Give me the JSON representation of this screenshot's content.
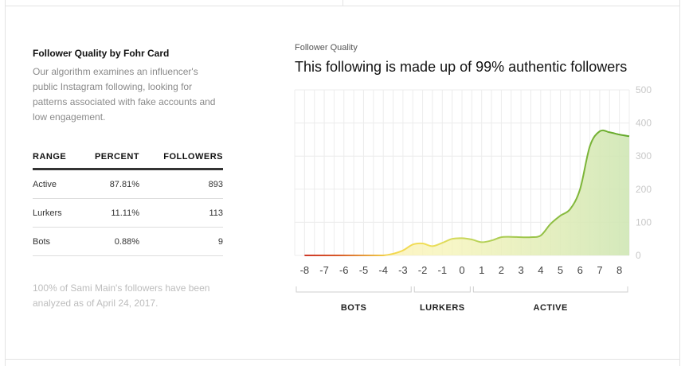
{
  "card": {
    "title": "Follower Quality by Fohr Card",
    "description": "Our algorithm examines an influencer's public Instagram following, looking for patterns associated with fake accounts and low engagement."
  },
  "table": {
    "headers": [
      "RANGE",
      "PERCENT",
      "FOLLOWERS"
    ],
    "rows": [
      {
        "range": "Active",
        "percent": "87.81%",
        "followers": "893"
      },
      {
        "range": "Lurkers",
        "percent": "11.11%",
        "followers": "113"
      },
      {
        "range": "Bots",
        "percent": "0.88%",
        "followers": "9"
      }
    ]
  },
  "footnote": "100% of Sami Main's followers have been analyzed as of April 24, 2017.",
  "chart_data": {
    "type": "area",
    "kicker": "Follower Quality",
    "title": "This following is made up of 99% authentic followers",
    "x": [
      -8,
      -7.5,
      -7,
      -6.5,
      -6,
      -5.5,
      -5,
      -4.5,
      -4,
      -3.5,
      -3,
      -2.5,
      -2,
      -1.5,
      -1,
      -0.5,
      0,
      0.5,
      1,
      1.5,
      2,
      2.5,
      3,
      3.5,
      4,
      4.5,
      5,
      5.5,
      6,
      6.5,
      7,
      7.5,
      8,
      8.5
    ],
    "y": [
      0,
      0,
      0,
      0,
      0,
      0,
      0,
      0,
      0,
      5,
      15,
      33,
      36,
      28,
      38,
      50,
      52,
      48,
      40,
      45,
      55,
      56,
      55,
      55,
      60,
      95,
      120,
      140,
      200,
      330,
      375,
      372,
      365,
      360
    ],
    "xlim": [
      -8.5,
      8.5
    ],
    "ylim": [
      0,
      500
    ],
    "x_ticks": [
      "-8",
      "-7",
      "-6",
      "-5",
      "-4",
      "-3",
      "-2",
      "-1",
      "0",
      "1",
      "2",
      "3",
      "4",
      "5",
      "6",
      "7",
      "8"
    ],
    "y_ticks": [
      "0",
      "100",
      "200",
      "300",
      "400",
      "500"
    ],
    "grid": true,
    "y_axis_position": "right",
    "ranges": [
      {
        "label": "BOTS",
        "from": -8.5,
        "to": -2.5
      },
      {
        "label": "LURKERS",
        "from": -2.5,
        "to": 0.5
      },
      {
        "label": "ACTIVE",
        "from": 0.5,
        "to": 8.5
      }
    ],
    "colors": {
      "bots": "#d0332a",
      "lurkers": "#f0d84a",
      "active": "#6aaa2a",
      "grid": "#ececec",
      "ticks": "#c8c8c8"
    }
  }
}
